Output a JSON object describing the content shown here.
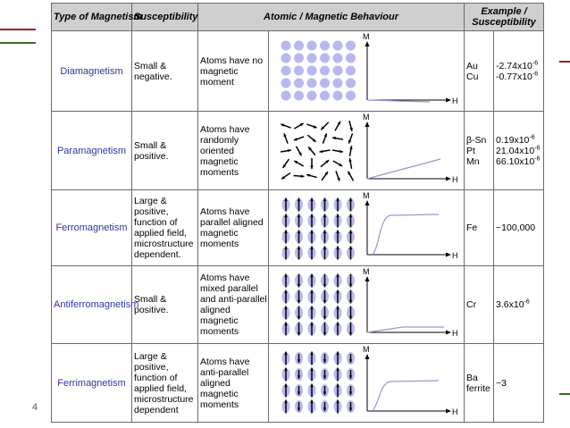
{
  "headers": {
    "type": "Type of Magnetism",
    "susceptibility": "Susceptibility",
    "behaviour": "Atomic / Magnetic Behaviour",
    "example": "Example / Susceptibility"
  },
  "axis": {
    "y": "M",
    "x": "H"
  },
  "page_number": "4",
  "colors": {
    "header_bg": "#cfcfcf",
    "type_text": "#2b35a5",
    "atom": "#b8b8f0",
    "curve": "#9898d0"
  },
  "rows": [
    {
      "type": "Diamagnetism",
      "susceptibility": [
        "Small &",
        "negative."
      ],
      "behaviour": [
        "Atoms have no",
        "magnetic",
        "moment"
      ],
      "examples": [
        "Au",
        "Cu"
      ],
      "values": [
        {
          "mantissa": "-2.74x10",
          "exp": "-6"
        },
        {
          "mantissa": "-0.77x10",
          "exp": "-6"
        }
      ]
    },
    {
      "type": "Paramagnetism",
      "susceptibility": [
        "Small &",
        "positive."
      ],
      "behaviour": [
        "Atoms have",
        "randomly",
        "oriented",
        "magnetic",
        "moments"
      ],
      "examples": [
        "β-Sn",
        "Pt",
        "Mn"
      ],
      "values": [
        {
          "mantissa": "0.19x10",
          "exp": "-6"
        },
        {
          "mantissa": "21.04x10",
          "exp": "-6"
        },
        {
          "mantissa": "66.10x10",
          "exp": "-6"
        }
      ]
    },
    {
      "type": "Ferromagnetism",
      "susceptibility": [
        "Large &",
        "positive,",
        "function of",
        "applied field,",
        "microstructure",
        "dependent."
      ],
      "behaviour": [
        "Atoms have",
        "parallel aligned",
        "magnetic",
        "moments"
      ],
      "examples": [
        "Fe"
      ],
      "values": [
        {
          "mantissa": "~100,000",
          "exp": ""
        }
      ]
    },
    {
      "type": "Antiferromagnetism",
      "susceptibility": [
        "Small &",
        "positive."
      ],
      "behaviour": [
        "Atoms have",
        "mixed parallel",
        "and anti-parallel",
        "aligned",
        "magnetic",
        "moments"
      ],
      "examples": [
        "Cr"
      ],
      "values": [
        {
          "mantissa": "3.6x10",
          "exp": "-6"
        }
      ]
    },
    {
      "type": "Ferrimagnetism",
      "susceptibility": [
        "Large &",
        "positive,",
        "function of",
        "applied field,",
        "microstructure",
        "dependent"
      ],
      "behaviour": [
        "Atoms have",
        "anti-parallel",
        "aligned",
        "magnetic",
        "moments"
      ],
      "examples": [
        "Ba",
        "ferrite"
      ],
      "values": [
        {
          "mantissa": "~3",
          "exp": ""
        }
      ]
    }
  ]
}
